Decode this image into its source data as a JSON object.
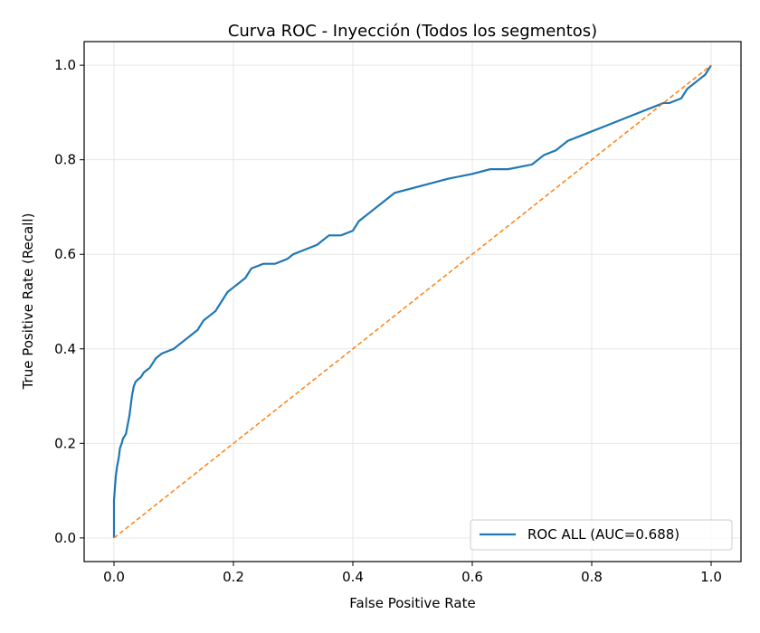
{
  "chart_data": {
    "type": "line",
    "title": "Curva ROC - Inyección (Todos los segmentos)",
    "xlabel": "False Positive Rate",
    "ylabel": "True Positive Rate (Recall)",
    "xlim": [
      -0.05,
      1.05
    ],
    "ylim": [
      -0.05,
      1.05
    ],
    "xticks": [
      "0.0",
      "0.2",
      "0.4",
      "0.6",
      "0.8",
      "1.0"
    ],
    "yticks": [
      "0.0",
      "0.2",
      "0.4",
      "0.6",
      "0.8",
      "1.0"
    ],
    "grid": true,
    "legend": {
      "position": "lower-right"
    },
    "series": [
      {
        "name": "ROC ALL (AUC=0.688)",
        "color": "#1f77b4",
        "style": "solid",
        "x": [
          0.0,
          0.0,
          0.003,
          0.005,
          0.008,
          0.01,
          0.013,
          0.015,
          0.02,
          0.023,
          0.026,
          0.03,
          0.033,
          0.036,
          0.04,
          0.045,
          0.05,
          0.055,
          0.06,
          0.07,
          0.08,
          0.09,
          0.1,
          0.11,
          0.12,
          0.13,
          0.14,
          0.15,
          0.16,
          0.17,
          0.18,
          0.19,
          0.2,
          0.21,
          0.22,
          0.23,
          0.25,
          0.27,
          0.29,
          0.3,
          0.32,
          0.34,
          0.36,
          0.38,
          0.4,
          0.41,
          0.42,
          0.43,
          0.44,
          0.45,
          0.47,
          0.5,
          0.53,
          0.56,
          0.6,
          0.63,
          0.66,
          0.7,
          0.71,
          0.72,
          0.74,
          0.75,
          0.76,
          0.78,
          0.8,
          0.82,
          0.84,
          0.86,
          0.88,
          0.9,
          0.92,
          0.93,
          0.95,
          0.96,
          0.98,
          0.99,
          1.0
        ],
        "y": [
          0.0,
          0.08,
          0.13,
          0.15,
          0.17,
          0.19,
          0.2,
          0.21,
          0.22,
          0.24,
          0.26,
          0.3,
          0.32,
          0.33,
          0.335,
          0.34,
          0.35,
          0.355,
          0.36,
          0.38,
          0.39,
          0.395,
          0.4,
          0.41,
          0.42,
          0.43,
          0.44,
          0.46,
          0.47,
          0.48,
          0.5,
          0.52,
          0.53,
          0.54,
          0.55,
          0.57,
          0.58,
          0.58,
          0.59,
          0.6,
          0.61,
          0.62,
          0.64,
          0.64,
          0.65,
          0.67,
          0.68,
          0.69,
          0.7,
          0.71,
          0.73,
          0.74,
          0.75,
          0.76,
          0.77,
          0.78,
          0.78,
          0.79,
          0.8,
          0.81,
          0.82,
          0.83,
          0.84,
          0.85,
          0.86,
          0.87,
          0.88,
          0.89,
          0.9,
          0.91,
          0.92,
          0.92,
          0.93,
          0.95,
          0.97,
          0.98,
          1.0
        ]
      },
      {
        "name": "",
        "color": "#ff7f0e",
        "style": "dashed",
        "x": [
          0.0,
          1.0
        ],
        "y": [
          0.0,
          1.0
        ]
      }
    ]
  }
}
